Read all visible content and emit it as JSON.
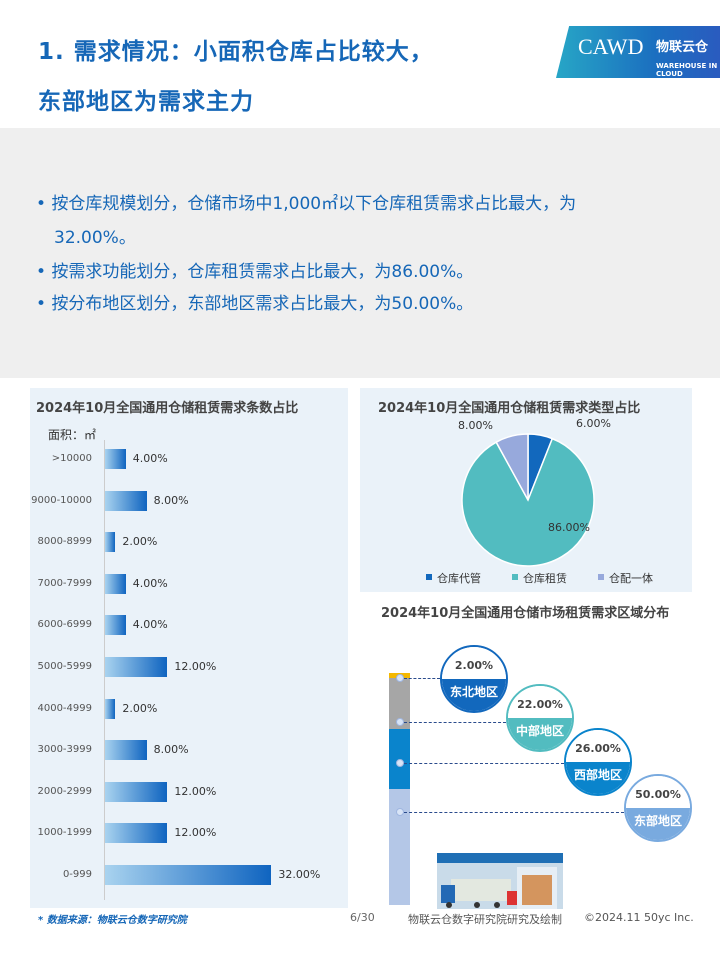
{
  "header": {
    "title_line1": "1. 需求情况：小面积仓库占比较大，",
    "title_line2": "东部地区为需求主力",
    "logo_text": "CAWD",
    "logo_text2": "物联云仓",
    "logo_text3": "WAREHOUSE IN CLOUD"
  },
  "bullets": [
    "按仓库规模划分，仓储市场中1,000㎡以下仓库租赁需求占比最大，为",
    "32.00%。",
    "按需求功能划分，仓库租赁需求占比最大，为86.00%。",
    "按分布地区划分，东部地区需求占比最大，为50.00%。"
  ],
  "chart_data": [
    {
      "type": "bar",
      "orientation": "horizontal",
      "title": "2024年10月全国通用仓储租赁需求条数占比",
      "ylabel": "面积：㎡",
      "categories": [
        ">10000",
        "9000-10000",
        "8000-8999",
        "7000-7999",
        "6000-6999",
        "5000-5999",
        "4000-4999",
        "3000-3999",
        "2000-2999",
        "1000-1999",
        "0-999"
      ],
      "values": [
        4,
        8,
        2,
        4,
        4,
        12,
        2,
        8,
        12,
        12,
        32
      ],
      "labels": [
        "4.00%",
        "8.00%",
        "2.00%",
        "4.00%",
        "4.00%",
        "12.00%",
        "2.00%",
        "8.00%",
        "12.00%",
        "12.00%",
        "32.00%"
      ],
      "unit": "%"
    },
    {
      "type": "pie",
      "title": "2024年10月全国通用仓储租赁需求类型占比",
      "legend": "bottom",
      "slices": [
        {
          "name": "仓库代管",
          "value": 6,
          "label": "6.00%",
          "color": "#1268bd"
        },
        {
          "name": "仓库租赁",
          "value": 86,
          "label": "86.00%",
          "color": "#52bcc0"
        },
        {
          "name": "仓配一体",
          "value": 8,
          "label": "8.00%",
          "color": "#97a9dc"
        }
      ]
    },
    {
      "type": "bar",
      "stacked": true,
      "title": "2024年10月全国通用仓储市场租赁需求区域分布",
      "series": [
        {
          "name": "东北地区",
          "value": 2,
          "label": "2.00%",
          "color": "#f5b800",
          "circle": "#1268bd"
        },
        {
          "name": "中部地区",
          "value": 22,
          "label": "22.00%",
          "color": "#a6a6a6",
          "circle": "#52bcc0"
        },
        {
          "name": "西部地区",
          "value": 26,
          "label": "26.00%",
          "color": "#0a84cc",
          "circle": "#0a84cc"
        },
        {
          "name": "东部地区",
          "value": 50,
          "label": "50.00%",
          "color": "#b4c7e7",
          "circle": "#79aadf"
        }
      ]
    }
  ],
  "footer": {
    "source": "* 数据来源：物联云仓数字研究院",
    "page": "6/30",
    "credit": "物联云仓数字研究院研究及绘制",
    "copyright": "©2024.11 50yc Inc."
  }
}
